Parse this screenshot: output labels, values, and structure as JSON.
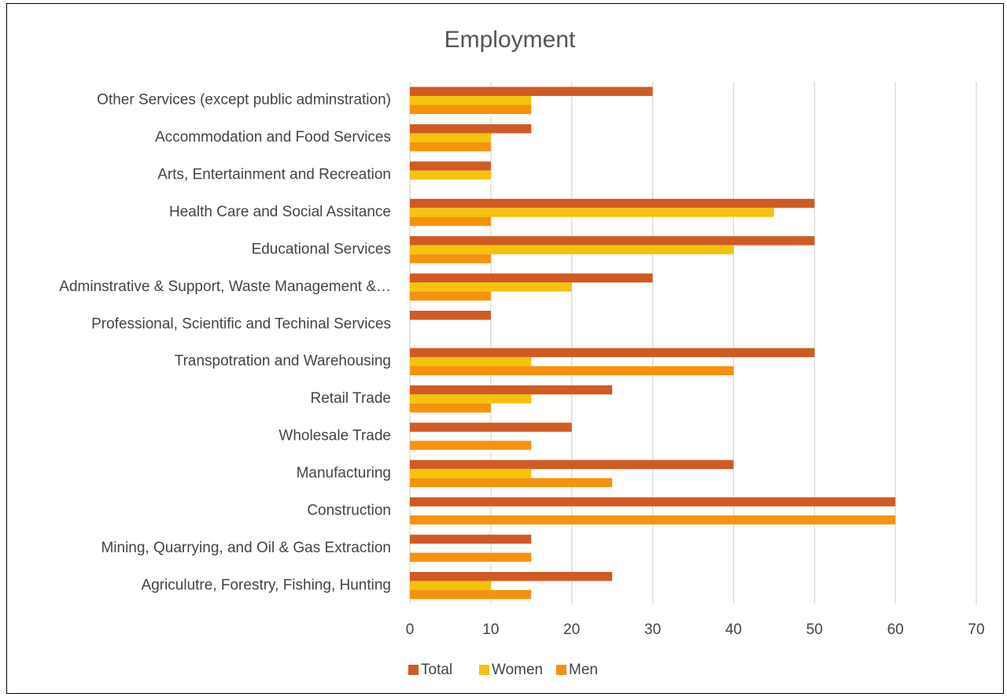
{
  "chart_data": {
    "type": "bar",
    "orientation": "horizontal",
    "title": "Employment",
    "categories": [
      "Other Services (except public adminstration)",
      "Accommodation and Food Services",
      "Arts, Entertainment and Recreation",
      "Health Care and Social Assitance",
      "Educational Services",
      "Adminstrative & Support, Waste Management &…",
      "Professional, Scientific and Techinal Services",
      "Transpotration and Warehousing",
      "Retail Trade",
      "Wholesale Trade",
      "Manufacturing",
      "Construction",
      "Mining, Quarrying, and Oil & Gas Extraction",
      "Agriculutre, Forestry, Fishing, Hunting"
    ],
    "series": [
      {
        "name": "Total",
        "color": "#D05A22",
        "values": [
          30,
          15,
          10,
          50,
          50,
          30,
          10,
          50,
          25,
          20,
          40,
          60,
          15,
          25
        ]
      },
      {
        "name": "Women",
        "color": "#F5C20E",
        "values": [
          15,
          10,
          10,
          45,
          40,
          20,
          0,
          15,
          15,
          0,
          15,
          0,
          0,
          10
        ]
      },
      {
        "name": "Men",
        "color": "#F5920E",
        "values": [
          15,
          10,
          0,
          10,
          10,
          10,
          0,
          40,
          10,
          15,
          25,
          60,
          15,
          15
        ]
      }
    ],
    "xlim": [
      0,
      70
    ],
    "xticks": [
      "0",
      "10",
      "20",
      "30",
      "40",
      "50",
      "60",
      "70"
    ],
    "grid": true,
    "legend_position": "bottom",
    "xlabel": "",
    "ylabel": ""
  }
}
